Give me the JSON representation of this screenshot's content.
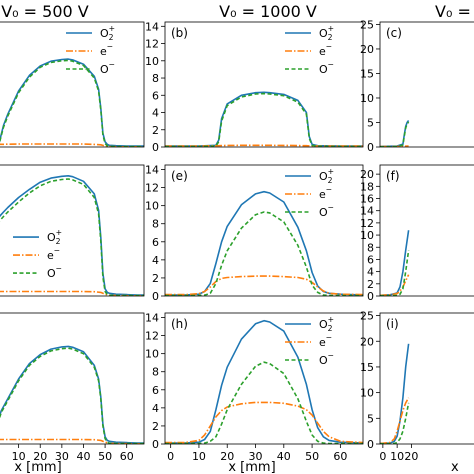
{
  "column_titles": [
    "V₀ = 500 V",
    "V₀ = 1000 V",
    "V₀ = "
  ],
  "bottom_xlabels": [
    "x [mm]",
    "x [mm]",
    "x "
  ],
  "series_styles": {
    "O2+": {
      "color": "#1f77b4",
      "dash": "none",
      "label_base": "O",
      "label_sub": "2",
      "label_sup": "+"
    },
    "e-": {
      "color": "#ff7f0e",
      "dash": "7 2 1.5 2",
      "label_base": "e",
      "label_sub": "",
      "label_sup": "−"
    },
    "O-": {
      "color": "#2ca02c",
      "dash": "4 2.5",
      "label_base": "O",
      "label_sub": "",
      "label_sup": "−"
    }
  },
  "chart_data": [
    {
      "id": "a",
      "panel_label": "",
      "type": "line",
      "xlim": [
        0,
        68
      ],
      "ylim": [
        0,
        14.5
      ],
      "yticks": [],
      "xticks": [],
      "legend": "top-right",
      "series": [
        {
          "key": "O2+",
          "x": [
            0,
            1,
            3,
            5,
            10,
            15,
            20,
            25,
            30,
            33,
            35,
            40,
            45,
            47,
            48,
            49,
            50,
            51,
            52,
            55,
            60,
            65,
            68
          ],
          "y": [
            0,
            0.5,
            2.5,
            3.8,
            6.5,
            8.3,
            9.4,
            9.95,
            10.15,
            10.2,
            10.1,
            9.6,
            8.2,
            6.7,
            4.5,
            1.6,
            0.6,
            0.3,
            0.2,
            0.15,
            0.1,
            0.1,
            0.1
          ]
        },
        {
          "key": "e-",
          "x": [
            0,
            10,
            20,
            30,
            40,
            45,
            48,
            50,
            52,
            60,
            68
          ],
          "y": [
            0.3,
            0.35,
            0.35,
            0.35,
            0.35,
            0.3,
            0.25,
            0.12,
            0.05,
            0.02,
            0.02
          ]
        },
        {
          "key": "O-",
          "x": [
            0,
            1,
            3,
            5,
            10,
            15,
            20,
            25,
            30,
            33,
            35,
            40,
            45,
            47,
            48,
            49,
            50,
            51,
            52,
            55,
            60,
            65,
            68
          ],
          "y": [
            0,
            0.4,
            2.3,
            3.6,
            6.3,
            8.1,
            9.25,
            9.8,
            10.0,
            10.05,
            9.95,
            9.45,
            8.0,
            6.5,
            4.3,
            1.4,
            0.4,
            0.15,
            0.08,
            0.05,
            0.05,
            0.05,
            0.05
          ]
        }
      ]
    },
    {
      "id": "b",
      "panel_label": "(b)",
      "type": "line",
      "xlim": [
        -2,
        68
      ],
      "ylim": [
        0,
        14.5
      ],
      "yticks": [
        0,
        2,
        4,
        6,
        8,
        10,
        12,
        14
      ],
      "xticks": [],
      "legend": "top-right",
      "series": [
        {
          "key": "O2+",
          "x": [
            -2,
            10,
            16,
            17,
            18,
            20,
            25,
            30,
            33,
            35,
            40,
            45,
            48,
            49,
            50,
            52,
            60,
            68
          ],
          "y": [
            0.1,
            0.1,
            0.2,
            0.8,
            3.3,
            5.0,
            6.0,
            6.3,
            6.35,
            6.3,
            6.1,
            5.4,
            4.0,
            1.2,
            0.3,
            0.15,
            0.1,
            0.1
          ]
        },
        {
          "key": "e-",
          "x": [
            -2,
            10,
            17,
            20,
            30,
            40,
            48,
            50,
            55,
            68
          ],
          "y": [
            0.12,
            0.12,
            0.15,
            0.18,
            0.2,
            0.18,
            0.15,
            0.12,
            0.1,
            0.1
          ]
        },
        {
          "key": "O-",
          "x": [
            -2,
            10,
            16,
            17,
            18,
            20,
            25,
            30,
            33,
            35,
            40,
            45,
            48,
            49,
            50,
            52,
            60,
            68
          ],
          "y": [
            0.05,
            0.05,
            0.1,
            0.6,
            3.0,
            4.8,
            5.8,
            6.15,
            6.2,
            6.15,
            5.95,
            5.2,
            3.8,
            1.0,
            0.2,
            0.08,
            0.05,
            0.05
          ]
        }
      ]
    },
    {
      "id": "c",
      "panel_label": "(c)",
      "type": "line",
      "xlim": [
        -2,
        68
      ],
      "ylim": [
        0,
        25.5
      ],
      "yticks": [
        0,
        5,
        10,
        15,
        20,
        25
      ],
      "xticks": [],
      "legend": "none",
      "series": [
        {
          "key": "O2+",
          "x": [
            -2,
            10,
            14,
            15,
            16,
            17,
            18
          ],
          "y": [
            0.1,
            0.2,
            0.6,
            2.5,
            4.2,
            5.0,
            5.4
          ]
        },
        {
          "key": "e-",
          "x": [
            -2,
            10,
            18
          ],
          "y": [
            0.1,
            0.1,
            0.2
          ]
        },
        {
          "key": "O-",
          "x": [
            -2,
            10,
            14,
            15,
            16,
            17,
            18
          ],
          "y": [
            0.05,
            0.1,
            0.4,
            2.2,
            3.9,
            4.7,
            5.1
          ]
        }
      ]
    },
    {
      "id": "d",
      "panel_label": "",
      "type": "line",
      "xlim": [
        0,
        68
      ],
      "ylim": [
        0,
        14.5
      ],
      "yticks": [],
      "xticks": [],
      "legend": "middle-left",
      "series": [
        {
          "key": "O2+",
          "x": [
            0,
            3,
            5,
            10,
            15,
            20,
            25,
            30,
            33,
            35,
            40,
            45,
            47,
            48,
            49,
            50,
            51,
            52,
            55,
            60,
            65,
            68
          ],
          "y": [
            8.5,
            9.3,
            9.8,
            10.9,
            11.8,
            12.6,
            13.05,
            13.25,
            13.3,
            13.2,
            12.7,
            11.3,
            9.5,
            6.5,
            2.5,
            0.8,
            0.4,
            0.3,
            0.2,
            0.15,
            0.1,
            0.1
          ]
        },
        {
          "key": "e-",
          "x": [
            0,
            10,
            20,
            30,
            40,
            45,
            48,
            50,
            52,
            60,
            68
          ],
          "y": [
            0.5,
            0.5,
            0.5,
            0.5,
            0.5,
            0.48,
            0.4,
            0.2,
            0.08,
            0.03,
            0.02
          ]
        },
        {
          "key": "O-",
          "x": [
            0,
            3,
            5,
            10,
            15,
            20,
            25,
            30,
            33,
            35,
            40,
            45,
            47,
            48,
            49,
            50,
            51,
            52,
            55,
            60,
            65,
            68
          ],
          "y": [
            8.0,
            8.8,
            9.3,
            10.4,
            11.4,
            12.2,
            12.7,
            12.9,
            12.95,
            12.85,
            12.35,
            10.9,
            9.1,
            6.1,
            2.1,
            0.5,
            0.15,
            0.08,
            0.05,
            0.05,
            0.05,
            0.05
          ]
        }
      ]
    },
    {
      "id": "e",
      "panel_label": "(e)",
      "type": "line",
      "xlim": [
        -2,
        68
      ],
      "ylim": [
        0,
        14.5
      ],
      "yticks": [
        0,
        2,
        4,
        6,
        8,
        10,
        12,
        14
      ],
      "xticks": [],
      "legend": "top-right",
      "series": [
        {
          "key": "O2+",
          "x": [
            -2,
            5,
            10,
            12,
            14,
            16,
            18,
            20,
            25,
            30,
            33,
            35,
            40,
            45,
            48,
            50,
            52,
            54,
            56,
            60,
            68
          ],
          "y": [
            0.1,
            0.1,
            0.2,
            0.5,
            1.4,
            3.6,
            6.0,
            7.7,
            10.1,
            11.3,
            11.55,
            11.4,
            10.4,
            7.6,
            5.0,
            2.6,
            1.1,
            0.5,
            0.3,
            0.2,
            0.1
          ]
        },
        {
          "key": "e-",
          "x": [
            -2,
            5,
            10,
            12,
            14,
            16,
            18,
            20,
            25,
            30,
            35,
            40,
            45,
            48,
            50,
            52,
            54,
            56,
            60,
            68
          ],
          "y": [
            0.15,
            0.15,
            0.25,
            0.5,
            1.0,
            1.6,
            1.95,
            2.05,
            2.15,
            2.2,
            2.2,
            2.15,
            2.05,
            1.85,
            1.5,
            1.0,
            0.55,
            0.3,
            0.2,
            0.15
          ]
        },
        {
          "key": "O-",
          "x": [
            -2,
            5,
            10,
            12,
            14,
            16,
            18,
            20,
            25,
            30,
            33,
            35,
            40,
            45,
            48,
            50,
            52,
            54,
            56,
            60,
            68
          ],
          "y": [
            0.05,
            0.05,
            0.05,
            0.1,
            0.3,
            1.4,
            3.4,
            5.0,
            7.5,
            9.0,
            9.3,
            9.2,
            8.2,
            5.6,
            3.2,
            1.2,
            0.4,
            0.1,
            0.05,
            0.05,
            0.05
          ]
        }
      ]
    },
    {
      "id": "f",
      "panel_label": "(f)",
      "type": "line",
      "xlim": [
        -2,
        68
      ],
      "ylim": [
        0,
        21.5
      ],
      "yticks": [
        0,
        2,
        4,
        6,
        8,
        10,
        12,
        14,
        16,
        18,
        20
      ],
      "xticks": [],
      "legend": "none",
      "series": [
        {
          "key": "O2+",
          "x": [
            -2,
            5,
            10,
            12,
            14,
            16,
            18
          ],
          "y": [
            0.1,
            0.2,
            0.5,
            1.5,
            4.0,
            7.5,
            10.8
          ]
        },
        {
          "key": "e-",
          "x": [
            -2,
            5,
            10,
            12,
            14,
            16,
            18
          ],
          "y": [
            0.1,
            0.2,
            0.4,
            0.8,
            1.5,
            2.5,
            3.5
          ]
        },
        {
          "key": "O-",
          "x": [
            -2,
            5,
            10,
            12,
            14,
            16,
            18
          ],
          "y": [
            0.05,
            0.05,
            0.1,
            0.3,
            1.2,
            4.0,
            7.5
          ]
        }
      ]
    },
    {
      "id": "g",
      "panel_label": "",
      "type": "line",
      "xlim": [
        0,
        68
      ],
      "ylim": [
        0,
        14.5
      ],
      "yticks": [],
      "xticks": [
        0,
        10,
        20,
        30,
        40,
        50,
        60
      ],
      "legend": "none",
      "series": [
        {
          "key": "O2+",
          "x": [
            0,
            1,
            2,
            5,
            10,
            15,
            20,
            25,
            30,
            33,
            35,
            40,
            45,
            47,
            48,
            49,
            50,
            51,
            52,
            55,
            60,
            65,
            68
          ],
          "y": [
            1.0,
            3.0,
            3.7,
            5.0,
            7.2,
            8.9,
            9.9,
            10.5,
            10.75,
            10.8,
            10.7,
            10.2,
            8.7,
            7.2,
            5.2,
            2.2,
            0.8,
            0.4,
            0.3,
            0.2,
            0.15,
            0.1,
            0.1
          ]
        },
        {
          "key": "e-",
          "x": [
            0,
            10,
            20,
            30,
            40,
            45,
            48,
            50,
            52,
            60,
            68
          ],
          "y": [
            0.5,
            0.5,
            0.5,
            0.5,
            0.5,
            0.48,
            0.4,
            0.2,
            0.08,
            0.03,
            0.02
          ]
        },
        {
          "key": "O-",
          "x": [
            0,
            1,
            2,
            5,
            10,
            15,
            20,
            25,
            30,
            33,
            35,
            40,
            45,
            47,
            48,
            49,
            50,
            51,
            52,
            55,
            60,
            65,
            68
          ],
          "y": [
            0.8,
            2.8,
            3.5,
            4.8,
            7.0,
            8.7,
            9.7,
            10.3,
            10.55,
            10.6,
            10.5,
            10.0,
            8.5,
            7.0,
            5.0,
            2.0,
            0.6,
            0.2,
            0.08,
            0.05,
            0.05,
            0.05,
            0.05
          ]
        }
      ]
    },
    {
      "id": "h",
      "panel_label": "(h)",
      "type": "line",
      "xlim": [
        -2,
        68
      ],
      "ylim": [
        0,
        14.5
      ],
      "yticks": [
        0,
        2,
        4,
        6,
        8,
        10,
        12,
        14
      ],
      "xticks": [
        0,
        10,
        20,
        30,
        40,
        50,
        60
      ],
      "legend": "top-right",
      "series": [
        {
          "key": "O2+",
          "x": [
            -2,
            5,
            10,
            12,
            14,
            16,
            18,
            20,
            25,
            30,
            33,
            35,
            40,
            45,
            48,
            50,
            52,
            54,
            56,
            60,
            68
          ],
          "y": [
            0.1,
            0.1,
            0.2,
            0.5,
            1.4,
            3.8,
            6.5,
            8.5,
            11.6,
            13.3,
            13.65,
            13.5,
            12.5,
            9.6,
            6.6,
            3.8,
            1.8,
            0.8,
            0.4,
            0.2,
            0.1
          ]
        },
        {
          "key": "e-",
          "x": [
            -2,
            5,
            10,
            12,
            14,
            16,
            18,
            20,
            25,
            30,
            35,
            40,
            45,
            48,
            50,
            52,
            54,
            56,
            60,
            68
          ],
          "y": [
            0.15,
            0.15,
            0.4,
            1.0,
            2.0,
            3.0,
            3.7,
            4.1,
            4.45,
            4.6,
            4.6,
            4.5,
            4.2,
            3.8,
            3.2,
            2.3,
            1.4,
            0.8,
            0.3,
            0.15
          ]
        },
        {
          "key": "O-",
          "x": [
            -2,
            5,
            10,
            12,
            14,
            16,
            18,
            20,
            25,
            30,
            33,
            35,
            40,
            45,
            48,
            50,
            52,
            54,
            56,
            60,
            68
          ],
          "y": [
            0.05,
            0.05,
            0.05,
            0.1,
            0.3,
            0.8,
            2.2,
            3.8,
            6.6,
            8.6,
            9.05,
            8.9,
            7.8,
            5.0,
            2.5,
            1.0,
            0.3,
            0.1,
            0.05,
            0.05,
            0.05
          ]
        }
      ]
    },
    {
      "id": "i",
      "panel_label": "(i)",
      "type": "line",
      "xlim": [
        -2,
        68
      ],
      "ylim": [
        0,
        25.5
      ],
      "yticks": [
        0,
        5,
        10,
        15,
        20,
        25
      ],
      "xticks": [
        0,
        10,
        20
      ],
      "legend": "none",
      "series": [
        {
          "key": "O2+",
          "x": [
            -2,
            5,
            8,
            10,
            12,
            14,
            16,
            18
          ],
          "y": [
            0.1,
            0.2,
            0.5,
            1.5,
            4.5,
            9.0,
            15.0,
            19.5
          ]
        },
        {
          "key": "e-",
          "x": [
            -2,
            5,
            8,
            10,
            12,
            14,
            16,
            18
          ],
          "y": [
            0.1,
            0.3,
            1.0,
            2.5,
            4.5,
            6.5,
            8.0,
            9.0
          ]
        },
        {
          "key": "O-",
          "x": [
            -2,
            5,
            8,
            10,
            12,
            14,
            16,
            18
          ],
          "y": [
            0.05,
            0.05,
            0.1,
            0.3,
            1.0,
            2.5,
            5.0,
            8.0
          ]
        }
      ]
    }
  ]
}
